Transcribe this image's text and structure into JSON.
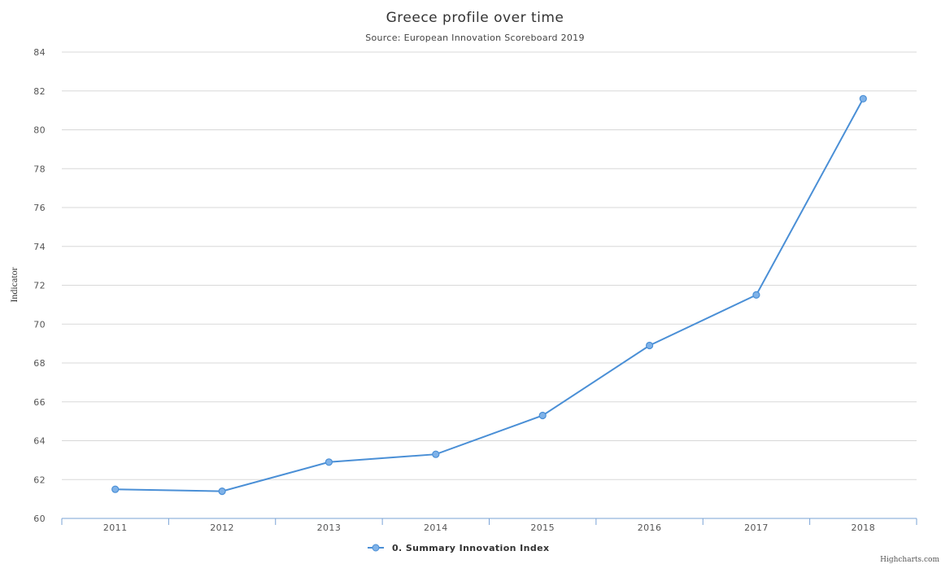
{
  "chart_data": {
    "type": "line",
    "title": "Greece profile over time",
    "subtitle": "Source: European Innovation Scoreboard 2019",
    "xlabel": "",
    "ylabel": "Indicator",
    "categories": [
      "2011",
      "2012",
      "2013",
      "2014",
      "2015",
      "2016",
      "2017",
      "2018"
    ],
    "ylim": [
      60,
      84
    ],
    "yticks": [
      60,
      62,
      64,
      66,
      68,
      70,
      72,
      74,
      76,
      78,
      80,
      82,
      84
    ],
    "grid": true,
    "legend_position": "bottom-center",
    "series": [
      {
        "name": "0. Summary Innovation Index",
        "values": [
          61.5,
          61.4,
          62.9,
          63.3,
          65.3,
          68.9,
          71.5,
          81.6
        ]
      }
    ],
    "credit": "Highcharts.com"
  },
  "colors": {
    "series": "#4a8fd6",
    "point_fill": "#7fb2e8",
    "grid": "#d8d8d8",
    "axis": "#7aa3d6"
  }
}
